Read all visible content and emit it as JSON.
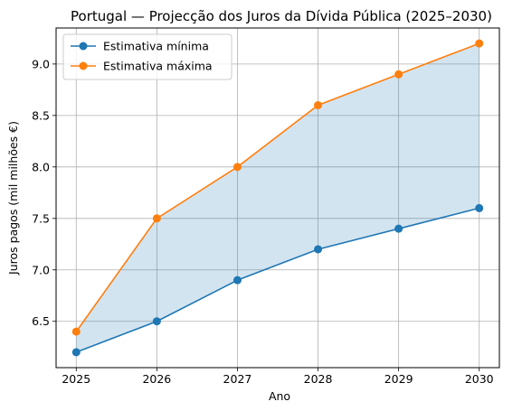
{
  "chart_data": {
    "type": "line",
    "title": "Portugal — Projecção dos Juros da Dívida Pública (2025–2030)",
    "xlabel": "Ano",
    "ylabel": "Juros pagos (mil milhões €)",
    "x": [
      2025,
      2026,
      2027,
      2028,
      2029,
      2030
    ],
    "series": [
      {
        "name": "Estimativa mínima",
        "values": [
          6.2,
          6.5,
          6.9,
          7.2,
          7.4,
          7.6
        ],
        "color": "#1f77b4"
      },
      {
        "name": "Estimativa máxima",
        "values": [
          6.4,
          7.5,
          8.0,
          8.6,
          8.9,
          9.2
        ],
        "color": "#ff7f0e"
      }
    ],
    "fill_between": {
      "color": "#1f77b4",
      "opacity": 0.2
    },
    "xlim": [
      2024.75,
      2030.25
    ],
    "ylim": [
      6.05,
      9.35
    ],
    "xticks": [
      "2025",
      "2026",
      "2027",
      "2028",
      "2029",
      "2030"
    ],
    "yticks": [
      "6.5",
      "7.0",
      "7.5",
      "8.0",
      "8.5",
      "9.0"
    ],
    "grid": true,
    "legend": "upper-left"
  }
}
